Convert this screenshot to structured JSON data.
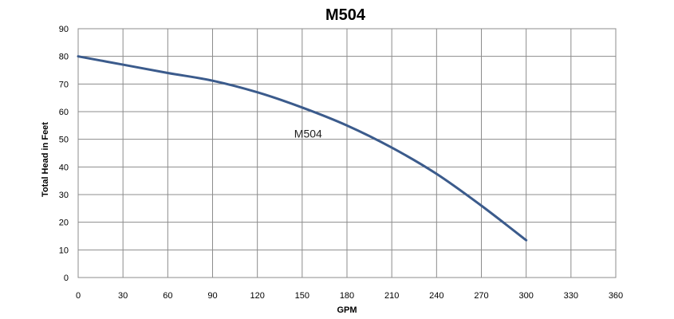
{
  "chart_data": {
    "type": "line",
    "title": "M504",
    "xlabel": "GPM",
    "ylabel": "Total Head in Feet",
    "xlim": [
      0,
      360
    ],
    "ylim": [
      0,
      90
    ],
    "x_ticks": [
      0,
      30,
      60,
      90,
      120,
      150,
      180,
      210,
      240,
      270,
      300,
      330,
      360
    ],
    "y_ticks": [
      0,
      10,
      20,
      30,
      40,
      50,
      60,
      70,
      80,
      90
    ],
    "grid": true,
    "legend": "none",
    "series": [
      {
        "name": "M504",
        "color": "#3b5b8c",
        "x": [
          0,
          30,
          60,
          90,
          120,
          150,
          180,
          210,
          240,
          270,
          300
        ],
        "y": [
          80,
          77,
          74,
          71.2,
          67,
          61.5,
          55,
          47,
          37.5,
          26,
          13.5
        ]
      }
    ],
    "annotations": [
      {
        "text": "M504",
        "x": 154,
        "y": 52
      }
    ]
  }
}
